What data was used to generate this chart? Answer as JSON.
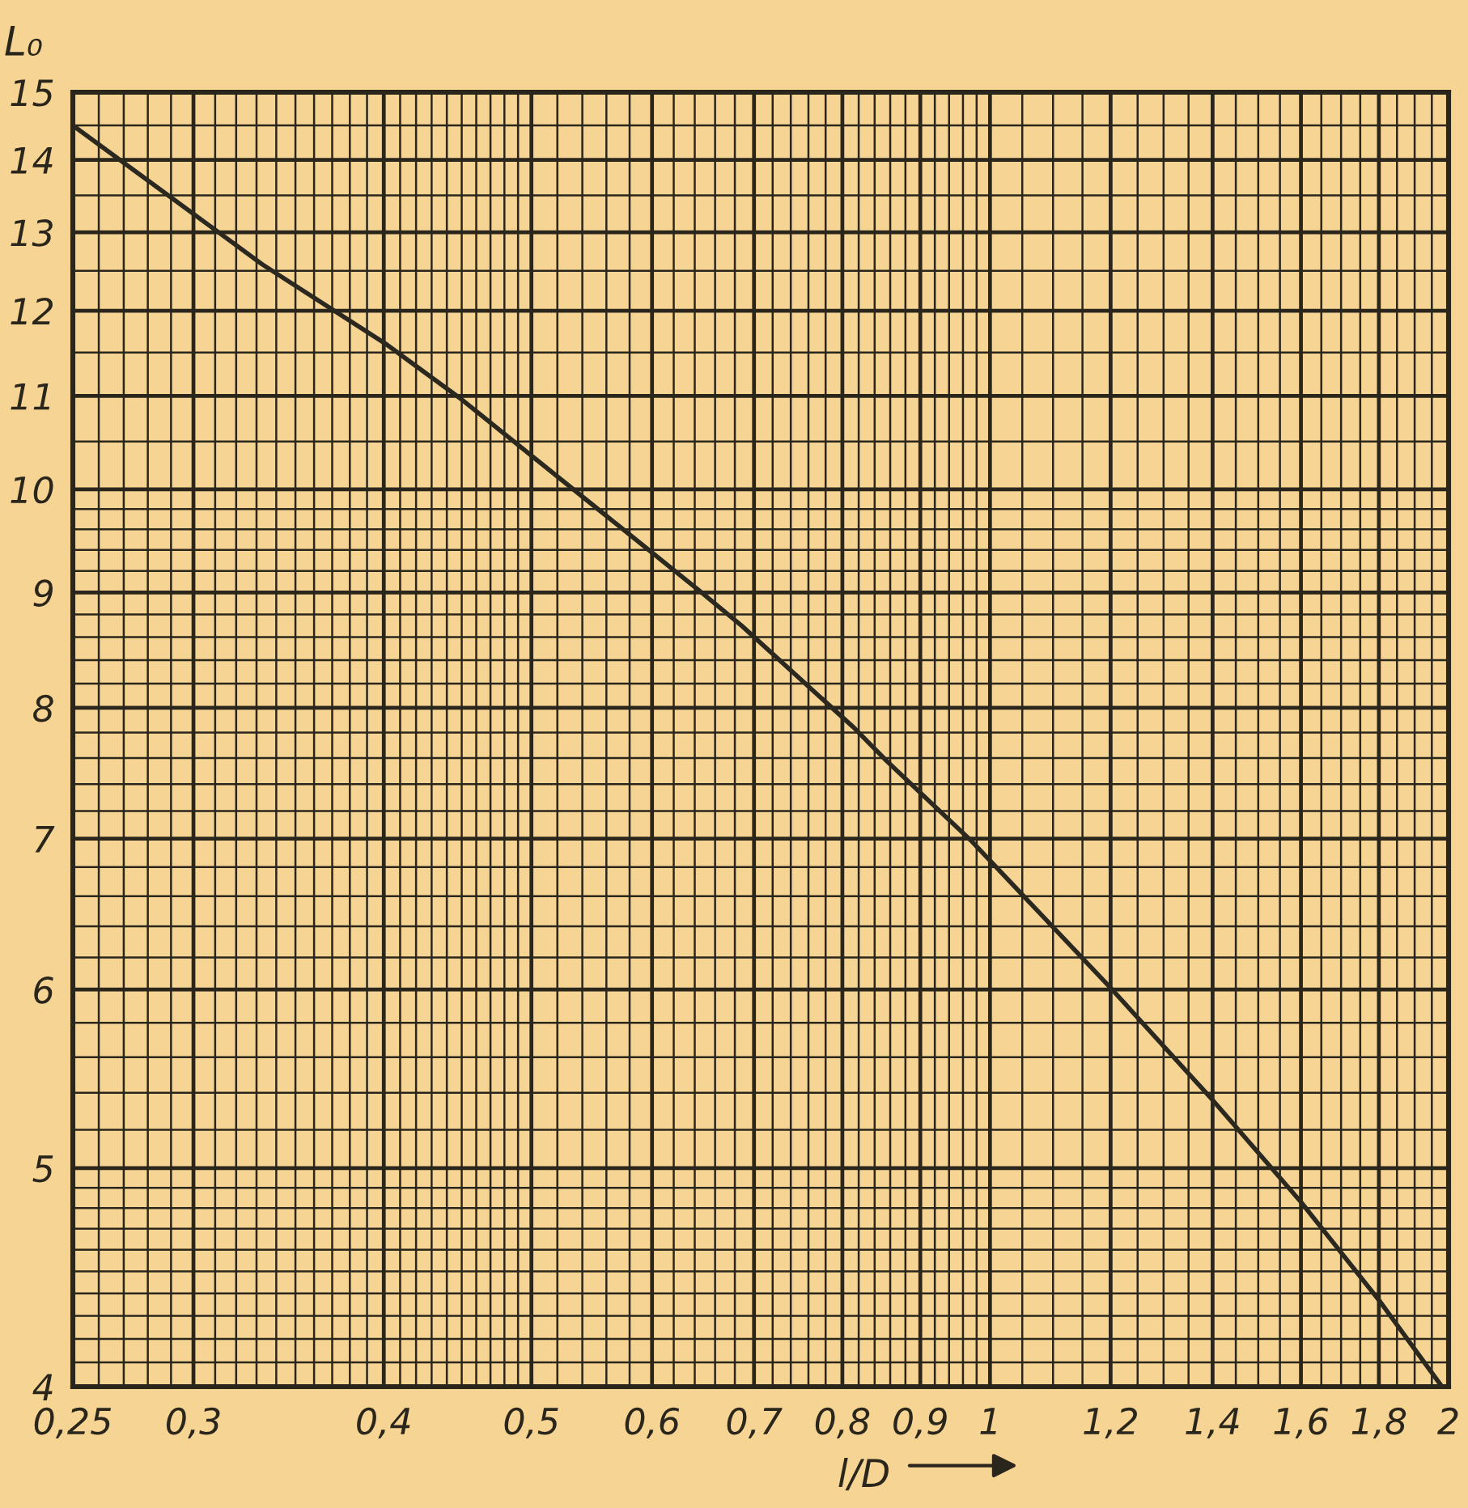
{
  "chart_data": {
    "type": "line",
    "xlabel": "l/D",
    "ylabel": "L₀",
    "log": "xy",
    "grid": true,
    "line_style": "solid",
    "xlim": [
      0.25,
      2
    ],
    "ylim": [
      4,
      15
    ],
    "xticks": [
      {
        "value": 0.25,
        "label": "0,25"
      },
      {
        "value": 0.26,
        "label": null
      },
      {
        "value": 0.27,
        "label": null
      },
      {
        "value": 0.28,
        "label": null
      },
      {
        "value": 0.29,
        "label": null
      },
      {
        "value": 0.3,
        "label": "0,3"
      },
      {
        "value": 0.31,
        "label": null
      },
      {
        "value": 0.32,
        "label": null
      },
      {
        "value": 0.33,
        "label": null
      },
      {
        "value": 0.34,
        "label": null
      },
      {
        "value": 0.35,
        "label": null
      },
      {
        "value": 0.36,
        "label": null
      },
      {
        "value": 0.37,
        "label": null
      },
      {
        "value": 0.38,
        "label": null
      },
      {
        "value": 0.39,
        "label": null
      },
      {
        "value": 0.4,
        "label": "0,4"
      },
      {
        "value": 0.41,
        "label": null
      },
      {
        "value": 0.42,
        "label": null
      },
      {
        "value": 0.43,
        "label": null
      },
      {
        "value": 0.44,
        "label": null
      },
      {
        "value": 0.45,
        "label": null
      },
      {
        "value": 0.46,
        "label": null
      },
      {
        "value": 0.47,
        "label": null
      },
      {
        "value": 0.48,
        "label": null
      },
      {
        "value": 0.49,
        "label": null
      },
      {
        "value": 0.5,
        "label": "0,5"
      },
      {
        "value": 0.52,
        "label": null
      },
      {
        "value": 0.54,
        "label": null
      },
      {
        "value": 0.56,
        "label": null
      },
      {
        "value": 0.58,
        "label": null
      },
      {
        "value": 0.6,
        "label": "0,6"
      },
      {
        "value": 0.62,
        "label": null
      },
      {
        "value": 0.64,
        "label": null
      },
      {
        "value": 0.66,
        "label": null
      },
      {
        "value": 0.68,
        "label": null
      },
      {
        "value": 0.7,
        "label": "0,7"
      },
      {
        "value": 0.72,
        "label": null
      },
      {
        "value": 0.74,
        "label": null
      },
      {
        "value": 0.76,
        "label": null
      },
      {
        "value": 0.78,
        "label": null
      },
      {
        "value": 0.8,
        "label": "0,8"
      },
      {
        "value": 0.82,
        "label": null
      },
      {
        "value": 0.84,
        "label": null
      },
      {
        "value": 0.86,
        "label": null
      },
      {
        "value": 0.88,
        "label": null
      },
      {
        "value": 0.9,
        "label": "0,9"
      },
      {
        "value": 0.92,
        "label": null
      },
      {
        "value": 0.94,
        "label": null
      },
      {
        "value": 0.96,
        "label": null
      },
      {
        "value": 0.98,
        "label": null
      },
      1,
      {
        "value": 1.05,
        "label": null
      },
      {
        "value": 1.1,
        "label": null
      },
      {
        "value": 1.15,
        "label": null
      },
      {
        "value": 1.2,
        "label": "1,2"
      },
      {
        "value": 1.25,
        "label": null
      },
      {
        "value": 1.3,
        "label": null
      },
      {
        "value": 1.35,
        "label": null
      },
      {
        "value": 1.4,
        "label": "1,4"
      },
      {
        "value": 1.45,
        "label": null
      },
      {
        "value": 1.5,
        "label": null
      },
      {
        "value": 1.55,
        "label": null
      },
      {
        "value": 1.6,
        "label": "1,6"
      },
      {
        "value": 1.65,
        "label": null
      },
      {
        "value": 1.7,
        "label": null
      },
      {
        "value": 1.75,
        "label": null
      },
      {
        "value": 1.8,
        "label": "1,8"
      },
      {
        "value": 1.85,
        "label": null
      },
      {
        "value": 1.9,
        "label": null
      },
      {
        "value": 1.95,
        "label": null
      },
      2
    ],
    "yticks": [
      4,
      {
        "value": 4.1,
        "label": null
      },
      {
        "value": 4.2,
        "label": null
      },
      {
        "value": 4.3,
        "label": null
      },
      {
        "value": 4.4,
        "label": null
      },
      {
        "value": 4.5,
        "label": null
      },
      {
        "value": 4.6,
        "label": null
      },
      {
        "value": 4.7,
        "label": null
      },
      {
        "value": 4.8,
        "label": null
      },
      {
        "value": 4.9,
        "label": null
      },
      5,
      {
        "value": 5.2,
        "label": null
      },
      {
        "value": 5.4,
        "label": null
      },
      {
        "value": 5.6,
        "label": null
      },
      {
        "value": 5.8,
        "label": null
      },
      6,
      {
        "value": 6.2,
        "label": null
      },
      {
        "value": 6.4,
        "label": null
      },
      {
        "value": 6.6,
        "label": null
      },
      {
        "value": 6.8,
        "label": null
      },
      7,
      {
        "value": 7.2,
        "label": null
      },
      {
        "value": 7.4,
        "label": null
      },
      {
        "value": 7.6,
        "label": null
      },
      {
        "value": 7.8,
        "label": null
      },
      8,
      {
        "value": 8.2,
        "label": null
      },
      {
        "value": 8.4,
        "label": null
      },
      {
        "value": 8.6,
        "label": null
      },
      {
        "value": 8.8,
        "label": null
      },
      9,
      {
        "value": 9.2,
        "label": null
      },
      {
        "value": 9.4,
        "label": null
      },
      {
        "value": 9.6,
        "label": null
      },
      {
        "value": 9.8,
        "label": null
      },
      10,
      {
        "value": 10.5,
        "label": null
      },
      11,
      {
        "value": 11.5,
        "label": null
      },
      12,
      {
        "value": 12.5,
        "label": null
      },
      13,
      {
        "value": 13.5,
        "label": null
      },
      14,
      {
        "value": 14.5,
        "label": null
      },
      15
    ],
    "x": [
      0.25,
      0.333,
      0.402,
      0.45,
      0.556,
      0.644,
      0.687,
      0.814,
      0.855,
      0.973,
      1.2,
      1.4,
      1.6,
      1.8,
      1.98
    ],
    "series": [
      {
        "color": "#2b2820",
        "values": [
          14.5,
          12.58,
          11.59,
          10.96,
          9.77,
          9.02,
          8.7,
          7.84,
          7.58,
          6.98,
          6.01,
          5.36,
          4.83,
          4.37,
          4.0
        ]
      }
    ]
  }
}
